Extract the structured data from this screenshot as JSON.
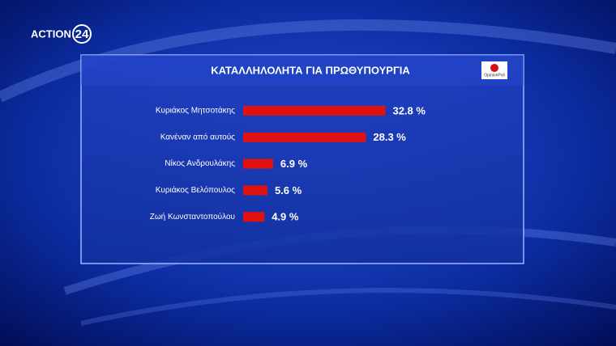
{
  "logo": {
    "text": "ACTION",
    "number": "24"
  },
  "pollster": "OpinionPoll",
  "chart_data": {
    "type": "hbar",
    "title": "ΚΑΤΑΛΛΗΛΟΛΗΤΑ ΓΙΑ ΠΡΩΘΥΠΟΥΡΓΙΑ",
    "categories": [
      "Κυριάκος Μητσοτάκης",
      "Κανέναν από αυτούς",
      "Νίκος Ανδρουλάκης",
      "Κυριάκος Βελόπουλος",
      "Ζωή Κωνσταντοπούλου"
    ],
    "values": [
      32.8,
      28.3,
      6.9,
      5.6,
      4.9
    ],
    "value_labels": [
      "32.8 %",
      "28.3 %",
      "6.9 %",
      "5.6 %",
      "4.9 %"
    ],
    "color": "#e0120f"
  }
}
